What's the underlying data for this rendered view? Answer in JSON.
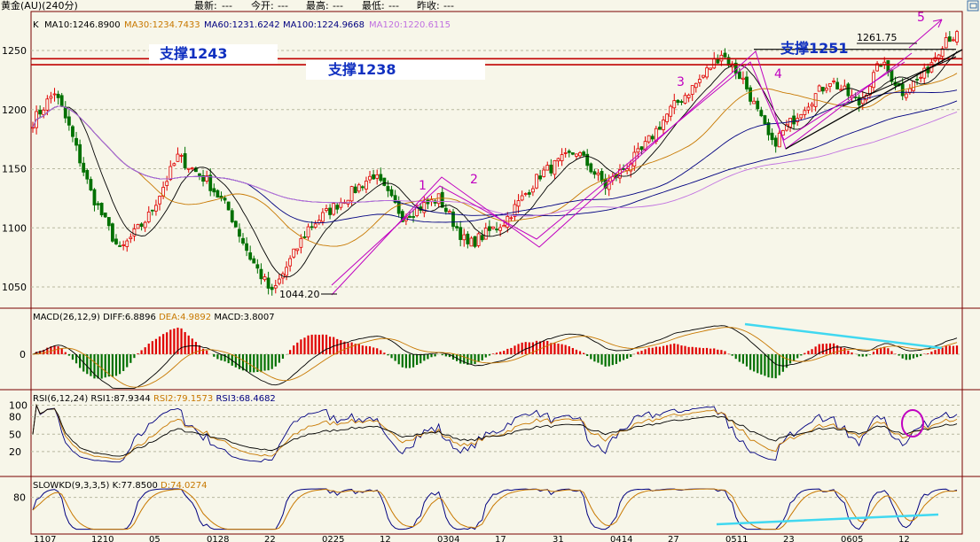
{
  "header": {
    "instrument": "黄金(AU)(240分)",
    "fields": [
      {
        "label": "最新:",
        "value": "---"
      },
      {
        "label": "今开:",
        "value": "---"
      },
      {
        "label": "最高:",
        "value": "---"
      },
      {
        "label": "最低:",
        "value": "---"
      },
      {
        "label": "昨收:",
        "value": "---"
      }
    ],
    "corner_icon": "window-restore-icon"
  },
  "panels": {
    "main": {
      "label": "K",
      "ma": [
        {
          "name": "MA10",
          "value": "1246.8900",
          "color": "#000000"
        },
        {
          "name": "MA30",
          "value": "1234.7433",
          "color": "#c87800"
        },
        {
          "name": "MA60",
          "value": "1231.6242",
          "color": "#000080"
        },
        {
          "name": "MA100",
          "value": "1224.9668",
          "color": "#000080"
        },
        {
          "name": "MA120",
          "value": "1220.6115",
          "color": "#c070e0"
        }
      ]
    },
    "macd": {
      "label": "MACD(26,12,9)",
      "diff": "DIFF:6.8896",
      "dea": "DEA:4.9892",
      "macd": "MACD:3.8007"
    },
    "rsi": {
      "label": "RSI(6,12,24)",
      "rsi1": "RSI1:87.9344",
      "rsi2": "RSI2:79.1573",
      "rsi3": "RSI3:68.4682"
    },
    "kd": {
      "label": "SLOWKD(9,3,3,5)",
      "k": "K:77.8500",
      "d": "D:74.0274"
    }
  },
  "annotations": {
    "support_labels": [
      "支撑1243",
      "支撑1238",
      "支撑1251"
    ],
    "price_labels": [
      "1261.75",
      "1044.20"
    ],
    "wave_labels": [
      "1",
      "2",
      "3",
      "4",
      "5"
    ]
  },
  "x_tick_labels": [
    "1107",
    "1210",
    "05",
    "0128",
    "22",
    "0225",
    "12",
    "0304",
    "17",
    "31",
    "0414",
    "27",
    "0511",
    "23",
    "0605",
    "12"
  ],
  "colors": {
    "up": "#e00000",
    "down": "#007000",
    "support": "#c00000",
    "wave": "#c000c0",
    "cyan": "#40d8f0",
    "trend": "#000000"
  },
  "chart_data": [
    {
      "type": "candlestick",
      "title": "黄金(AU)(240分)",
      "y_ticks": [
        1050,
        1100,
        1150,
        1200,
        1250
      ],
      "ylim": [
        1030,
        1285
      ],
      "grid": true,
      "approx_path": [
        {
          "i": 0,
          "price": 1190
        },
        {
          "i": 6,
          "price": 1215
        },
        {
          "i": 10,
          "price": 1185
        },
        {
          "i": 16,
          "price": 1130
        },
        {
          "i": 24,
          "price": 1080
        },
        {
          "i": 32,
          "price": 1110
        },
        {
          "i": 40,
          "price": 1160
        },
        {
          "i": 48,
          "price": 1140
        },
        {
          "i": 54,
          "price": 1115
        },
        {
          "i": 60,
          "price": 1075
        },
        {
          "i": 66,
          "price": 1044.2
        },
        {
          "i": 76,
          "price": 1100
        },
        {
          "i": 86,
          "price": 1125
        },
        {
          "i": 94,
          "price": 1145
        },
        {
          "i": 102,
          "price": 1110
        },
        {
          "i": 112,
          "price": 1125
        },
        {
          "i": 120,
          "price": 1085
        },
        {
          "i": 130,
          "price": 1105
        },
        {
          "i": 140,
          "price": 1145
        },
        {
          "i": 150,
          "price": 1165
        },
        {
          "i": 158,
          "price": 1135
        },
        {
          "i": 168,
          "price": 1165
        },
        {
          "i": 176,
          "price": 1200
        },
        {
          "i": 184,
          "price": 1225
        },
        {
          "i": 190,
          "price": 1248
        },
        {
          "i": 196,
          "price": 1225
        },
        {
          "i": 204,
          "price": 1170
        },
        {
          "i": 212,
          "price": 1200
        },
        {
          "i": 220,
          "price": 1225
        },
        {
          "i": 228,
          "price": 1205
        },
        {
          "i": 234,
          "price": 1240
        },
        {
          "i": 240,
          "price": 1215
        },
        {
          "i": 246,
          "price": 1230
        },
        {
          "i": 252,
          "price": 1261.75
        }
      ],
      "support_levels": [
        1251,
        1243,
        1238
      ],
      "high_label": 1261.75,
      "low_label": 1044.2
    },
    {
      "type": "bar+line",
      "title": "MACD(26,12,9)",
      "y_ticks": [
        0
      ],
      "ylim": [
        -25,
        25
      ],
      "series": [
        {
          "name": "DIFF",
          "last": 6.8896
        },
        {
          "name": "DEA",
          "last": 4.9892
        },
        {
          "name": "MACD",
          "last": 3.8007
        }
      ]
    },
    {
      "type": "line",
      "title": "RSI(6,12,24)",
      "y_ticks": [
        20,
        50,
        80,
        100
      ],
      "ylim": [
        0,
        110
      ],
      "series": [
        {
          "name": "RSI1",
          "last": 87.9344
        },
        {
          "name": "RSI2",
          "last": 79.1573
        },
        {
          "name": "RSI3",
          "last": 68.4682
        }
      ]
    },
    {
      "type": "line",
      "title": "SLOWKD(9,3,3,5)",
      "y_ticks": [
        80
      ],
      "ylim": [
        0,
        110
      ],
      "series": [
        {
          "name": "K",
          "last": 77.85
        },
        {
          "name": "D",
          "last": 74.0274
        }
      ]
    }
  ]
}
